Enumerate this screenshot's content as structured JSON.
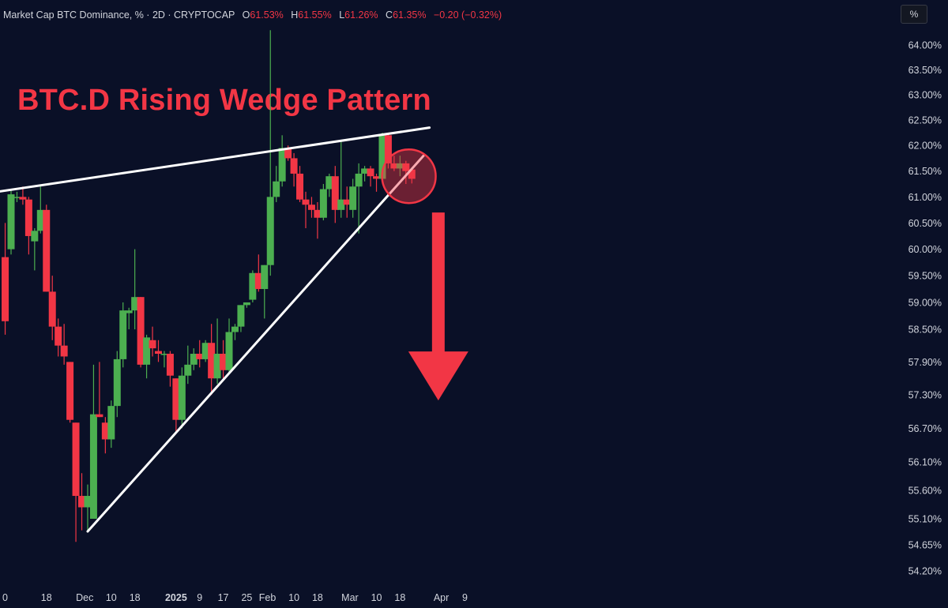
{
  "header": {
    "symbol": "Market Cap BTC Dominance, % · 2D · CRYPTOCAP",
    "open_label": "O",
    "open": "61.53%",
    "high_label": "H",
    "high": "61.55%",
    "low_label": "L",
    "low": "61.26%",
    "close_label": "C",
    "close": "61.35%",
    "change": "−0.20 (−0.32%)"
  },
  "scale_button": "%",
  "annotation_title": "BTC.D Rising Wedge Pattern",
  "colors": {
    "background": "#0a1027",
    "up": "#4caf50",
    "down": "#f23645",
    "trendline": "#ffffff",
    "annotation": "#f23645"
  },
  "chart_data": {
    "type": "candlestick",
    "title": "",
    "ylabel": "",
    "y_scale": "log",
    "ylim": [
      54.0,
      64.4
    ],
    "y_ticks": [
      "64.00%",
      "63.50%",
      "63.00%",
      "62.50%",
      "62.00%",
      "61.50%",
      "61.00%",
      "60.50%",
      "60.00%",
      "59.50%",
      "59.00%",
      "58.50%",
      "57.90%",
      "57.30%",
      "56.70%",
      "56.10%",
      "55.60%",
      "55.10%",
      "54.65%",
      "54.20%"
    ],
    "x_ticks": [
      {
        "label": "0",
        "x": "2024-10-30"
      },
      {
        "label": "18",
        "x": "2024-11-18"
      },
      {
        "label": "Dec",
        "x": "2024-12-01"
      },
      {
        "label": "10",
        "x": "2024-12-10"
      },
      {
        "label": "18",
        "x": "2024-12-18"
      },
      {
        "label": "2025",
        "x": "2025-01-01",
        "bold": true
      },
      {
        "label": "9",
        "x": "2025-01-09"
      },
      {
        "label": "17",
        "x": "2025-01-17"
      },
      {
        "label": "25",
        "x": "2025-01-25"
      },
      {
        "label": "Feb",
        "x": "2025-02-01"
      },
      {
        "label": "10",
        "x": "2025-02-10"
      },
      {
        "label": "18",
        "x": "2025-02-18"
      },
      {
        "label": "Mar",
        "x": "2025-03-01"
      },
      {
        "label": "10",
        "x": "2025-03-10"
      },
      {
        "label": "18",
        "x": "2025-03-18"
      },
      {
        "label": "Apr",
        "x": "2025-04-01"
      },
      {
        "label": "9",
        "x": "2025-04-09"
      }
    ],
    "candles": [
      {
        "x": "2024-11-04",
        "o": 59.85,
        "h": 60.5,
        "l": 58.4,
        "c": 58.65
      },
      {
        "x": "2024-11-06",
        "o": 60.0,
        "h": 61.15,
        "l": 59.9,
        "c": 61.05
      },
      {
        "x": "2024-11-08",
        "o": 61.0,
        "h": 61.1,
        "l": 60.9,
        "c": 61.0
      },
      {
        "x": "2024-11-10",
        "o": 61.0,
        "h": 61.2,
        "l": 60.85,
        "c": 60.95
      },
      {
        "x": "2024-11-12",
        "o": 60.95,
        "h": 61.0,
        "l": 59.9,
        "c": 60.25
      },
      {
        "x": "2024-11-14",
        "o": 60.15,
        "h": 60.4,
        "l": 59.6,
        "c": 60.35
      },
      {
        "x": "2024-11-16",
        "o": 60.35,
        "h": 61.2,
        "l": 60.3,
        "c": 60.75
      },
      {
        "x": "2024-11-18",
        "o": 60.75,
        "h": 60.85,
        "l": 59.2,
        "c": 59.2
      },
      {
        "x": "2024-11-20",
        "o": 59.2,
        "h": 59.5,
        "l": 58.3,
        "c": 58.55
      },
      {
        "x": "2024-11-22",
        "o": 58.55,
        "h": 58.7,
        "l": 58.0,
        "c": 58.2
      },
      {
        "x": "2024-11-24",
        "o": 58.2,
        "h": 58.6,
        "l": 57.85,
        "c": 58.0
      },
      {
        "x": "2024-11-26",
        "o": 57.9,
        "h": 57.9,
        "l": 56.8,
        "c": 56.85
      },
      {
        "x": "2024-11-28",
        "o": 56.8,
        "h": 56.8,
        "l": 54.7,
        "c": 55.5
      },
      {
        "x": "2024-11-30",
        "o": 55.5,
        "h": 55.9,
        "l": 54.9,
        "c": 55.3
      },
      {
        "x": "2024-12-02",
        "o": 55.3,
        "h": 55.7,
        "l": 54.9,
        "c": 55.5
      },
      {
        "x": "2024-12-04",
        "o": 55.1,
        "h": 57.85,
        "l": 55.1,
        "c": 56.95
      },
      {
        "x": "2024-12-06",
        "o": 56.95,
        "h": 57.9,
        "l": 56.9,
        "c": 56.9
      },
      {
        "x": "2024-12-08",
        "o": 56.8,
        "h": 56.9,
        "l": 56.25,
        "c": 56.5
      },
      {
        "x": "2024-12-10",
        "o": 56.5,
        "h": 57.2,
        "l": 56.35,
        "c": 57.1
      },
      {
        "x": "2024-12-12",
        "o": 57.1,
        "h": 58.1,
        "l": 56.9,
        "c": 57.95
      },
      {
        "x": "2024-12-14",
        "o": 57.95,
        "h": 59.0,
        "l": 57.8,
        "c": 58.85
      },
      {
        "x": "2024-12-16",
        "o": 58.8,
        "h": 58.9,
        "l": 58.5,
        "c": 58.85
      },
      {
        "x": "2024-12-18",
        "o": 58.85,
        "h": 60.0,
        "l": 58.5,
        "c": 59.1
      },
      {
        "x": "2024-12-20",
        "o": 59.1,
        "h": 59.1,
        "l": 57.8,
        "c": 57.85
      },
      {
        "x": "2024-12-22",
        "o": 57.85,
        "h": 58.4,
        "l": 57.6,
        "c": 58.35
      },
      {
        "x": "2024-12-24",
        "o": 58.3,
        "h": 58.55,
        "l": 58.0,
        "c": 58.15
      },
      {
        "x": "2024-12-26",
        "o": 58.1,
        "h": 58.3,
        "l": 57.9,
        "c": 58.05
      },
      {
        "x": "2024-12-28",
        "o": 58.05,
        "h": 58.1,
        "l": 57.8,
        "c": 58.05
      },
      {
        "x": "2024-12-30",
        "o": 58.05,
        "h": 58.1,
        "l": 57.45,
        "c": 57.65
      },
      {
        "x": "2025-01-01",
        "o": 57.6,
        "h": 57.6,
        "l": 56.6,
        "c": 56.85
      },
      {
        "x": "2025-01-03",
        "o": 56.85,
        "h": 57.8,
        "l": 56.7,
        "c": 57.65
      },
      {
        "x": "2025-01-05",
        "o": 57.65,
        "h": 58.2,
        "l": 57.5,
        "c": 57.85
      },
      {
        "x": "2025-01-07",
        "o": 57.85,
        "h": 58.15,
        "l": 57.75,
        "c": 58.05
      },
      {
        "x": "2025-01-09",
        "o": 58.05,
        "h": 58.3,
        "l": 57.8,
        "c": 57.95
      },
      {
        "x": "2025-01-11",
        "o": 57.95,
        "h": 58.3,
        "l": 57.9,
        "c": 58.25
      },
      {
        "x": "2025-01-13",
        "o": 58.25,
        "h": 58.6,
        "l": 57.3,
        "c": 57.6
      },
      {
        "x": "2025-01-15",
        "o": 57.6,
        "h": 58.7,
        "l": 57.5,
        "c": 58.05
      },
      {
        "x": "2025-01-17",
        "o": 58.05,
        "h": 58.3,
        "l": 57.6,
        "c": 57.75
      },
      {
        "x": "2025-01-19",
        "o": 57.75,
        "h": 58.7,
        "l": 57.7,
        "c": 58.45
      },
      {
        "x": "2025-01-21",
        "o": 58.45,
        "h": 58.6,
        "l": 58.3,
        "c": 58.55
      },
      {
        "x": "2025-01-23",
        "o": 58.55,
        "h": 58.95,
        "l": 58.45,
        "c": 58.95
      },
      {
        "x": "2025-01-25",
        "o": 58.95,
        "h": 59.0,
        "l": 58.9,
        "c": 59.0
      },
      {
        "x": "2025-01-27",
        "o": 59.05,
        "h": 59.6,
        "l": 59.0,
        "c": 59.55
      },
      {
        "x": "2025-01-29",
        "o": 59.55,
        "h": 59.9,
        "l": 59.2,
        "c": 59.25
      },
      {
        "x": "2025-01-31",
        "o": 59.25,
        "h": 59.7,
        "l": 58.7,
        "c": 59.7
      },
      {
        "x": "2025-02-02",
        "o": 59.7,
        "h": 64.3,
        "l": 59.5,
        "c": 61.0
      },
      {
        "x": "2025-02-04",
        "o": 61.0,
        "h": 61.6,
        "l": 60.9,
        "c": 61.3
      },
      {
        "x": "2025-02-06",
        "o": 61.3,
        "h": 62.2,
        "l": 61.2,
        "c": 61.95
      },
      {
        "x": "2025-02-08",
        "o": 61.95,
        "h": 62.0,
        "l": 61.7,
        "c": 61.75
      },
      {
        "x": "2025-02-10",
        "o": 61.75,
        "h": 61.85,
        "l": 61.2,
        "c": 61.45
      },
      {
        "x": "2025-02-12",
        "o": 61.45,
        "h": 61.6,
        "l": 60.9,
        "c": 60.95
      },
      {
        "x": "2025-02-14",
        "o": 60.95,
        "h": 61.1,
        "l": 60.4,
        "c": 60.85
      },
      {
        "x": "2025-02-16",
        "o": 60.85,
        "h": 61.0,
        "l": 60.6,
        "c": 60.75
      },
      {
        "x": "2025-02-18",
        "o": 60.75,
        "h": 60.9,
        "l": 60.2,
        "c": 60.6
      },
      {
        "x": "2025-02-20",
        "o": 60.6,
        "h": 61.25,
        "l": 60.55,
        "c": 61.15
      },
      {
        "x": "2025-02-22",
        "o": 61.15,
        "h": 61.45,
        "l": 61.0,
        "c": 61.4
      },
      {
        "x": "2025-02-24",
        "o": 61.4,
        "h": 61.6,
        "l": 60.5,
        "c": 60.75
      },
      {
        "x": "2025-02-26",
        "o": 60.75,
        "h": 62.1,
        "l": 60.6,
        "c": 60.95
      },
      {
        "x": "2025-02-28",
        "o": 60.95,
        "h": 61.2,
        "l": 60.6,
        "c": 60.85
      },
      {
        "x": "2025-03-02",
        "o": 60.75,
        "h": 61.35,
        "l": 60.6,
        "c": 61.2
      },
      {
        "x": "2025-03-04",
        "o": 61.2,
        "h": 61.65,
        "l": 60.3,
        "c": 61.45
      },
      {
        "x": "2025-03-06",
        "o": 61.45,
        "h": 61.6,
        "l": 61.3,
        "c": 61.55
      },
      {
        "x": "2025-03-08",
        "o": 61.55,
        "h": 61.6,
        "l": 61.2,
        "c": 61.4
      },
      {
        "x": "2025-03-10",
        "o": 61.4,
        "h": 61.45,
        "l": 61.1,
        "c": 61.35
      },
      {
        "x": "2025-03-12",
        "o": 61.35,
        "h": 62.25,
        "l": 61.3,
        "c": 62.2
      },
      {
        "x": "2025-03-14",
        "o": 62.2,
        "h": 62.25,
        "l": 61.55,
        "c": 61.65
      },
      {
        "x": "2025-03-16",
        "o": 61.65,
        "h": 61.8,
        "l": 61.5,
        "c": 61.55
      },
      {
        "x": "2025-03-18",
        "o": 61.55,
        "h": 61.8,
        "l": 61.4,
        "c": 61.65
      },
      {
        "x": "2025-03-20",
        "o": 61.65,
        "h": 61.7,
        "l": 61.25,
        "c": 61.5
      },
      {
        "x": "2025-03-22",
        "o": 61.53,
        "h": 61.55,
        "l": 61.26,
        "c": 61.35
      }
    ],
    "trendlines": [
      {
        "name": "",
        "x1": "2024-10-30",
        "y1": 61.08,
        "x2": "2025-03-28",
        "y2": 62.35
      },
      {
        "name": "",
        "x1": "2024-12-02",
        "y1": 54.88,
        "x2": "2025-03-26",
        "y2": 61.8
      }
    ],
    "annotations": [
      {
        "type": "circle",
        "x": "2025-03-21",
        "y": 61.4
      },
      {
        "type": "arrow-down",
        "x": "2025-03-31",
        "y_from": 60.7,
        "y_to": 57.2
      }
    ],
    "grid": false,
    "legend": "none"
  }
}
